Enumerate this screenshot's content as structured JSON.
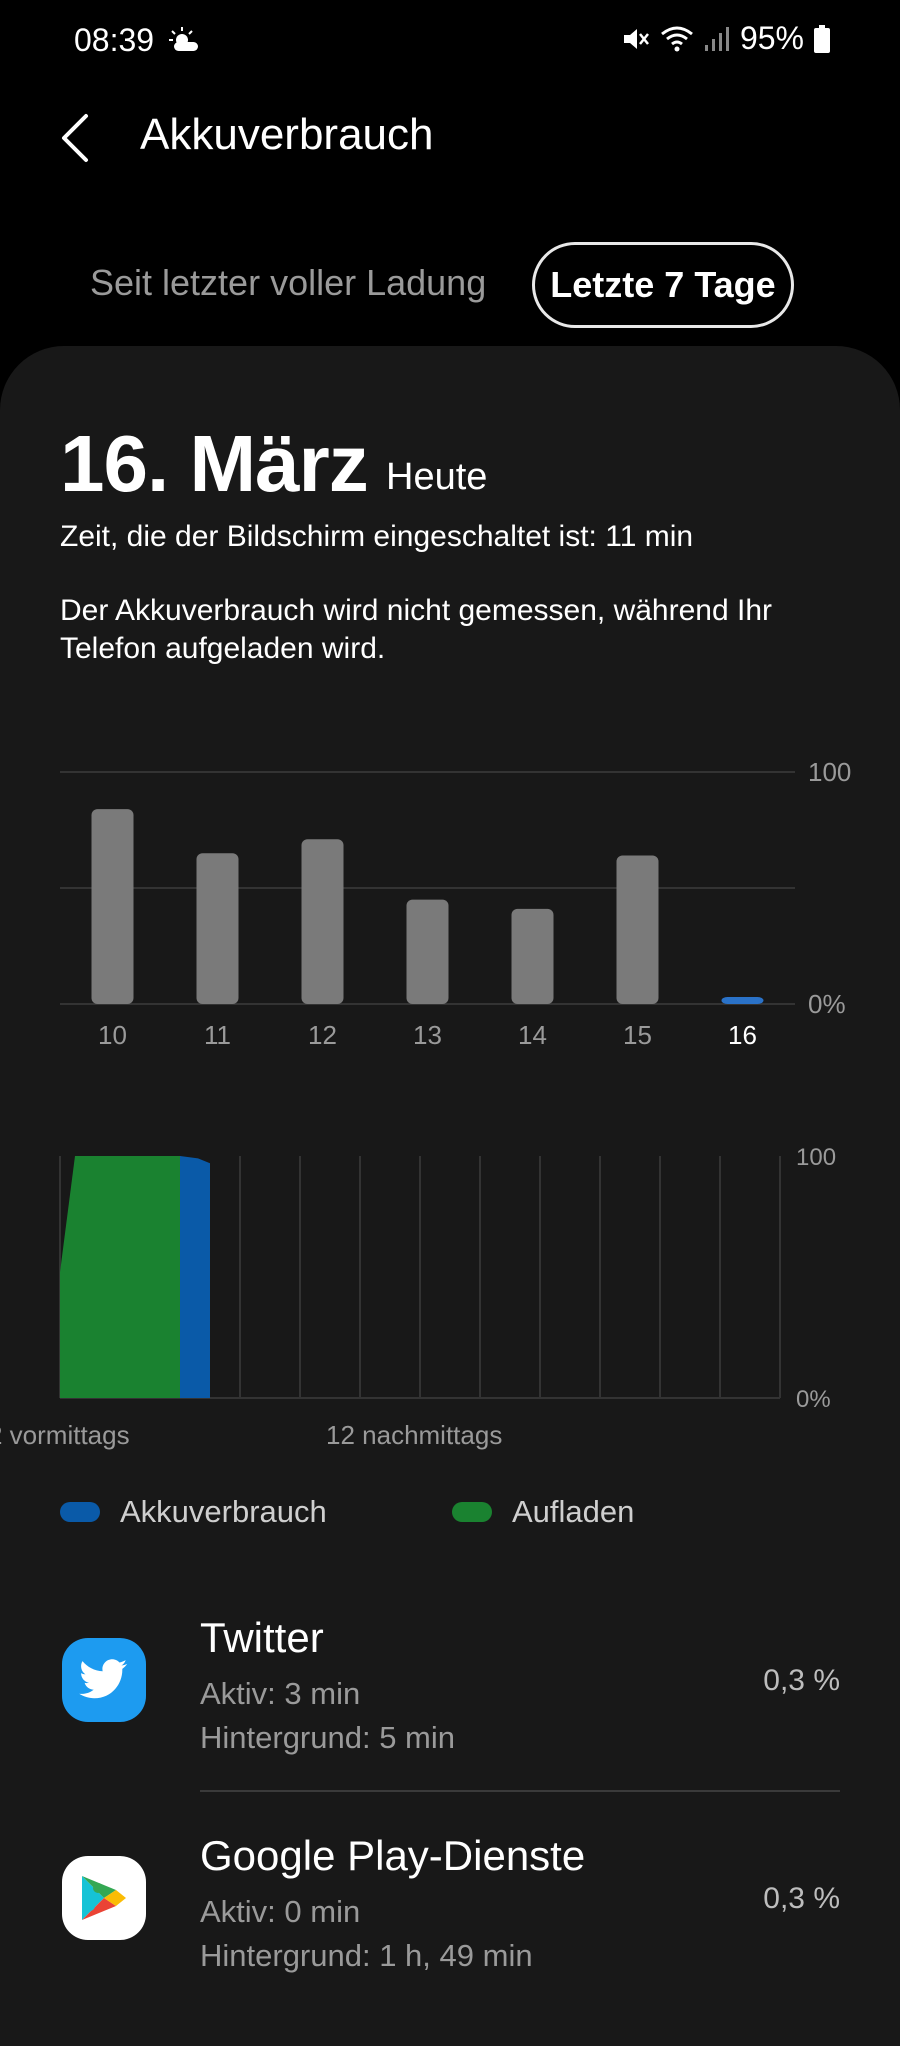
{
  "status_bar": {
    "time": "08:39",
    "battery": "95%"
  },
  "header": {
    "title": "Akkuverbrauch"
  },
  "segments": {
    "since_full_charge": "Seit letzter voller Ladung",
    "last_7_days": "Letzte 7 Tage"
  },
  "summary": {
    "date": "16. März",
    "today": "Heute",
    "screen_time": "Zeit, die der Bildschirm eingeschaltet ist: 11 min",
    "note": "Der Akkuverbrauch wird nicht gemessen, während Ihr Telefon aufgeladen wird."
  },
  "colors": {
    "usage": "#0a5aa8",
    "charging": "#1a8230",
    "bar": "#7a7a7a",
    "highlight_bar": "#2a72c8"
  },
  "chart_data": [
    {
      "type": "bar",
      "categories": [
        "10",
        "11",
        "12",
        "13",
        "14",
        "15",
        "16"
      ],
      "values": [
        84,
        65,
        71,
        45,
        41,
        64,
        3
      ],
      "selected": "16",
      "y_tick_labels": [
        "100",
        "0%"
      ],
      "ylim": [
        0,
        100
      ]
    },
    {
      "type": "area",
      "x_labels": [
        "2 vormittags",
        "12 nachmittags"
      ],
      "y_tick_labels": [
        "100",
        "0%"
      ],
      "ylim": [
        0,
        100
      ],
      "series": [
        {
          "name": "Aufladen",
          "x_hours": [
            0,
            0.5,
            1.0,
            4.0
          ],
          "values": [
            52,
            100,
            100,
            100
          ]
        },
        {
          "name": "Akkuverbrauch",
          "x_hours": [
            4.0,
            4.6,
            5.0
          ],
          "values": [
            100,
            99,
            97
          ]
        }
      ],
      "legend": [
        "Akkuverbrauch",
        "Aufladen"
      ]
    }
  ],
  "apps": [
    {
      "name": "Twitter",
      "active": "Aktiv: 3 min",
      "background": "Hintergrund: 5 min",
      "percent": "0,3 %"
    },
    {
      "name": "Google Play-Dienste",
      "active": "Aktiv: 0 min",
      "background": "Hintergrund: 1 h, 49 min",
      "percent": "0,3 %"
    }
  ]
}
